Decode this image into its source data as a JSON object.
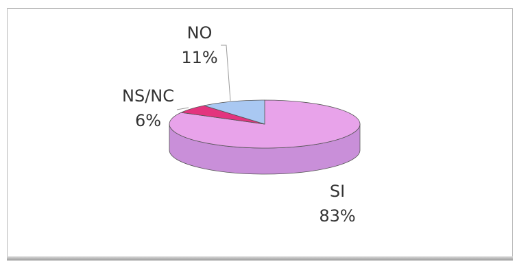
{
  "chart_data": {
    "type": "pie",
    "title": "",
    "slices": [
      {
        "label": "SI",
        "value": 83,
        "value_label": "83%",
        "color": "#e8a3ea",
        "side_color": "#c98fd9"
      },
      {
        "label": "NS/NC",
        "value": 6,
        "value_label": "6%",
        "color": "#e3347e",
        "side_color": "#b81e5f"
      },
      {
        "label": "NO",
        "value": 11,
        "value_label": "11%",
        "color": "#a9c8f2",
        "side_color": "#8fb0dc"
      }
    ],
    "legend": "none",
    "style": "3d"
  }
}
